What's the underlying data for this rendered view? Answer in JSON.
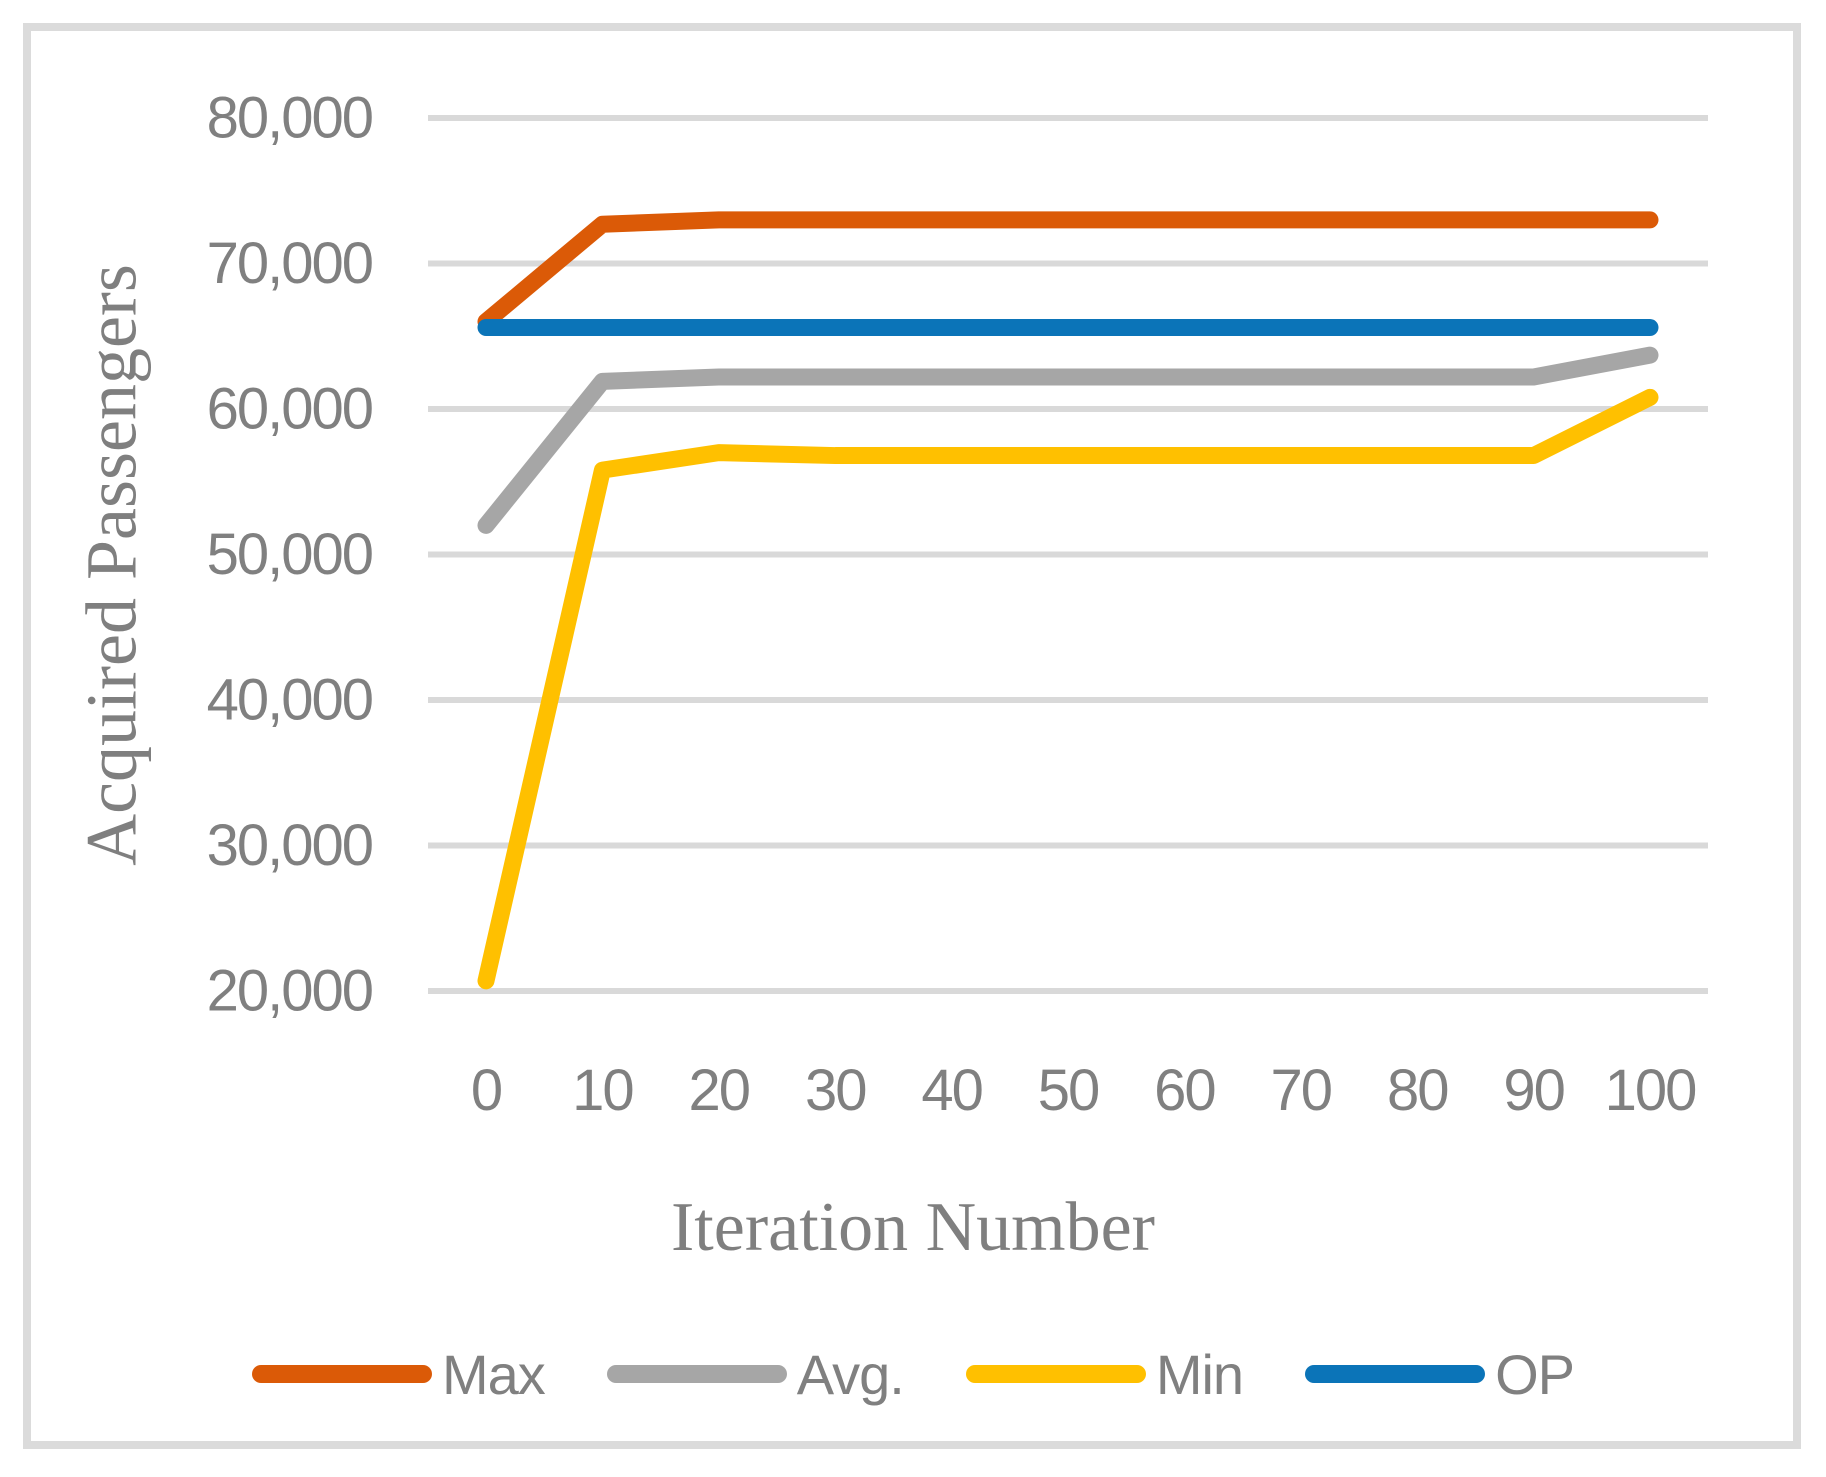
{
  "figure": {
    "background": "#ffffff",
    "border_color": "#DBDBDB"
  },
  "chart_data": {
    "type": "line",
    "title": "",
    "xlabel": "Iteration Number",
    "ylabel": "Acquired Passengers",
    "x": [
      0,
      10,
      20,
      30,
      40,
      50,
      60,
      70,
      80,
      90,
      100
    ],
    "x_tick_labels": [
      "0",
      "10",
      "20",
      "30",
      "40",
      "50",
      "60",
      "70",
      "80",
      "90",
      "100"
    ],
    "y_ticks": [
      20000,
      30000,
      40000,
      50000,
      60000,
      70000,
      80000
    ],
    "y_tick_labels": [
      "20,000",
      "30,000",
      "40,000",
      "50,000",
      "60,000",
      "70,000",
      "80,000"
    ],
    "ylim": [
      20000,
      80000
    ],
    "grid": "horizontal",
    "legend_position": "bottom",
    "series": [
      {
        "name": "Max",
        "color": "#DB5A07",
        "values": [
          66000,
          72700,
          73000,
          73000,
          73000,
          73000,
          73000,
          73000,
          73000,
          73000,
          73000
        ]
      },
      {
        "name": "Avg.",
        "color": "#A6A6A6",
        "values": [
          52000,
          61900,
          62200,
          62200,
          62200,
          62200,
          62200,
          62200,
          62200,
          62200,
          63700
        ]
      },
      {
        "name": "Min",
        "color": "#FFC000",
        "values": [
          20700,
          55800,
          57000,
          56800,
          56800,
          56800,
          56800,
          56800,
          56800,
          56800,
          60800
        ]
      },
      {
        "name": "OP",
        "color": "#0B74B8",
        "values": [
          65600,
          65600,
          65600,
          65600,
          65600,
          65600,
          65600,
          65600,
          65600,
          65600,
          65600
        ]
      }
    ],
    "styling": {
      "gridline_color": "#D9D9D9",
      "tick_label_color": "#808080",
      "axis_title_color": "#7F7F7F",
      "line_width": 17
    }
  }
}
